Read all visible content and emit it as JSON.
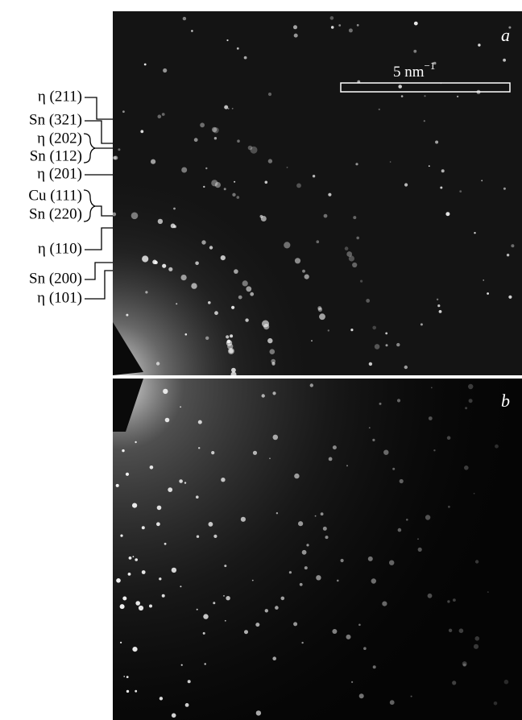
{
  "panels": [
    {
      "letter": "a"
    },
    {
      "letter": "b"
    }
  ],
  "scale_bar": {
    "label": "5 nm",
    "exponent": "−1"
  },
  "labels": [
    "η (211)",
    "Sn (321)",
    "η (202)",
    "Sn (112)",
    "η (201)",
    "Cu (111)",
    "Sn (220)",
    "η (110)",
    "Sn (200)",
    "η (101)"
  ]
}
